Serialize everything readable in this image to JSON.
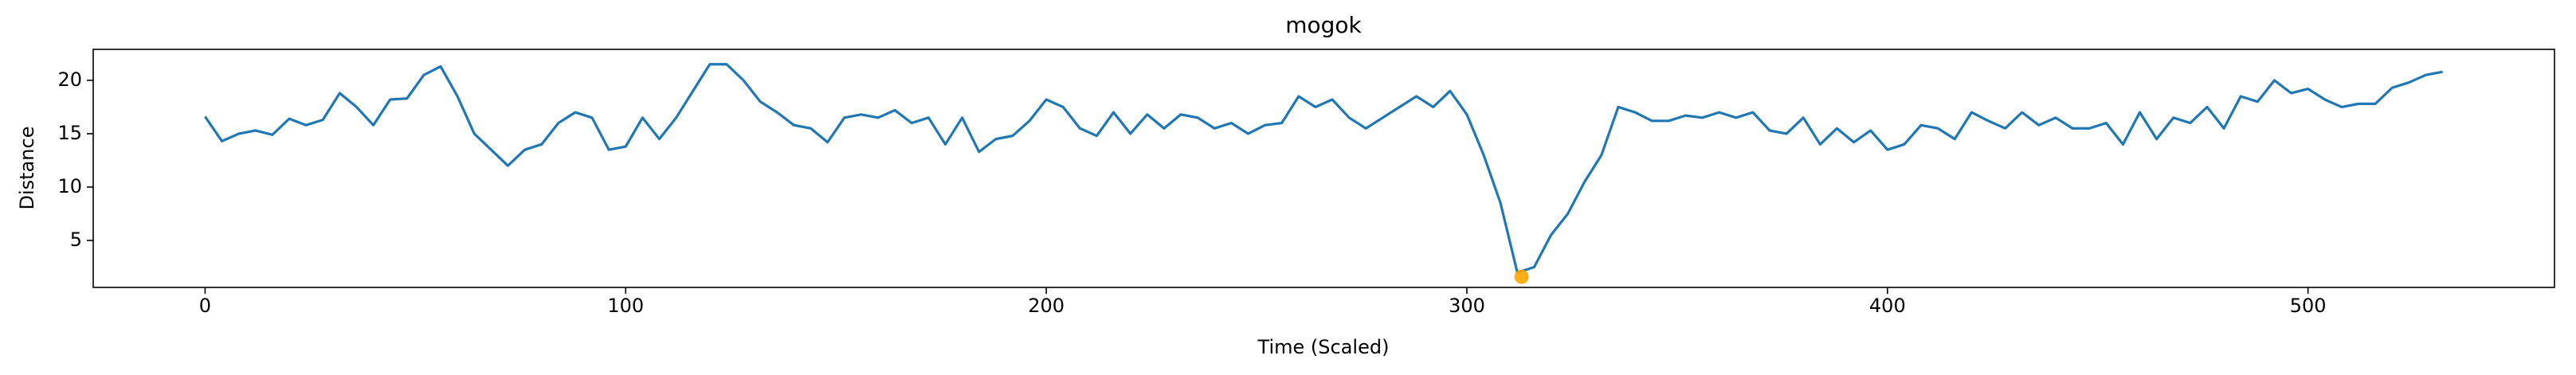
{
  "chart_data": {
    "type": "line",
    "title": "mogok",
    "xlabel": "Time (Scaled)",
    "ylabel": "Distance",
    "x": [
      0,
      4,
      8,
      12,
      16,
      20,
      24,
      28,
      32,
      36,
      40,
      44,
      48,
      52,
      56,
      60,
      64,
      68,
      72,
      76,
      80,
      84,
      88,
      92,
      96,
      100,
      104,
      108,
      112,
      116,
      120,
      124,
      128,
      132,
      136,
      140,
      144,
      148,
      152,
      156,
      160,
      164,
      168,
      172,
      176,
      180,
      184,
      188,
      192,
      196,
      200,
      204,
      208,
      212,
      216,
      220,
      224,
      228,
      232,
      236,
      240,
      244,
      248,
      252,
      256,
      260,
      264,
      268,
      272,
      276,
      280,
      284,
      288,
      292,
      296,
      300,
      304,
      308,
      312,
      316,
      320,
      324,
      328,
      332,
      336,
      340,
      344,
      348,
      352,
      356,
      360,
      364,
      368,
      372,
      376,
      380,
      384,
      388,
      392,
      396,
      400,
      404,
      408,
      412,
      416,
      420,
      424,
      428,
      432,
      436,
      440,
      444,
      448,
      452,
      456,
      460,
      464,
      468,
      472,
      476,
      480,
      484,
      488,
      492,
      496,
      500,
      504,
      508,
      512,
      516,
      520,
      524,
      528,
      532
    ],
    "values": [
      16.6,
      14.3,
      15.0,
      15.3,
      14.9,
      16.4,
      15.8,
      16.3,
      18.8,
      17.5,
      15.8,
      18.2,
      18.3,
      20.5,
      21.3,
      18.5,
      15.0,
      13.5,
      12.0,
      13.5,
      14.0,
      16.0,
      17.0,
      16.5,
      13.5,
      13.8,
      16.5,
      14.5,
      16.5,
      19.0,
      21.5,
      21.5,
      20.0,
      18.0,
      17.0,
      15.8,
      15.5,
      14.2,
      16.5,
      16.8,
      16.5,
      17.2,
      16.0,
      16.5,
      14.0,
      16.5,
      13.3,
      14.5,
      14.8,
      16.2,
      18.2,
      17.5,
      15.5,
      14.8,
      17.0,
      15.0,
      16.8,
      15.5,
      16.8,
      16.5,
      15.5,
      16.0,
      15.0,
      15.8,
      16.0,
      18.5,
      17.5,
      18.2,
      16.5,
      15.5,
      16.5,
      17.5,
      18.5,
      17.5,
      19.0,
      16.8,
      13.0,
      8.5,
      2.0,
      2.5,
      5.5,
      7.5,
      10.5,
      13.0,
      17.5,
      17.0,
      16.2,
      16.2,
      16.7,
      16.5,
      17.0,
      16.5,
      17.0,
      15.3,
      15.0,
      16.5,
      14.0,
      15.5,
      14.2,
      15.3,
      13.5,
      14.0,
      15.8,
      15.5,
      14.5,
      17.0,
      16.2,
      15.5,
      17.0,
      15.8,
      16.5,
      15.5,
      15.5,
      16.0,
      14.0,
      17.0,
      14.5,
      16.5,
      16.0,
      17.5,
      15.5,
      18.5,
      18.0,
      20.0,
      18.8,
      19.2,
      18.2,
      17.5,
      17.8,
      17.8,
      19.3,
      19.8,
      20.5,
      20.8
    ],
    "color": "#1f77b4",
    "marker": {
      "x": 313,
      "y": 1.6,
      "color": "#ffa500"
    },
    "xlim": [
      -26.6,
      558.6
    ],
    "ylim": [
      0.6,
      22.9
    ],
    "xticks": [
      0,
      100,
      200,
      300,
      400,
      500
    ],
    "yticks": [
      5,
      10,
      15,
      20
    ]
  }
}
